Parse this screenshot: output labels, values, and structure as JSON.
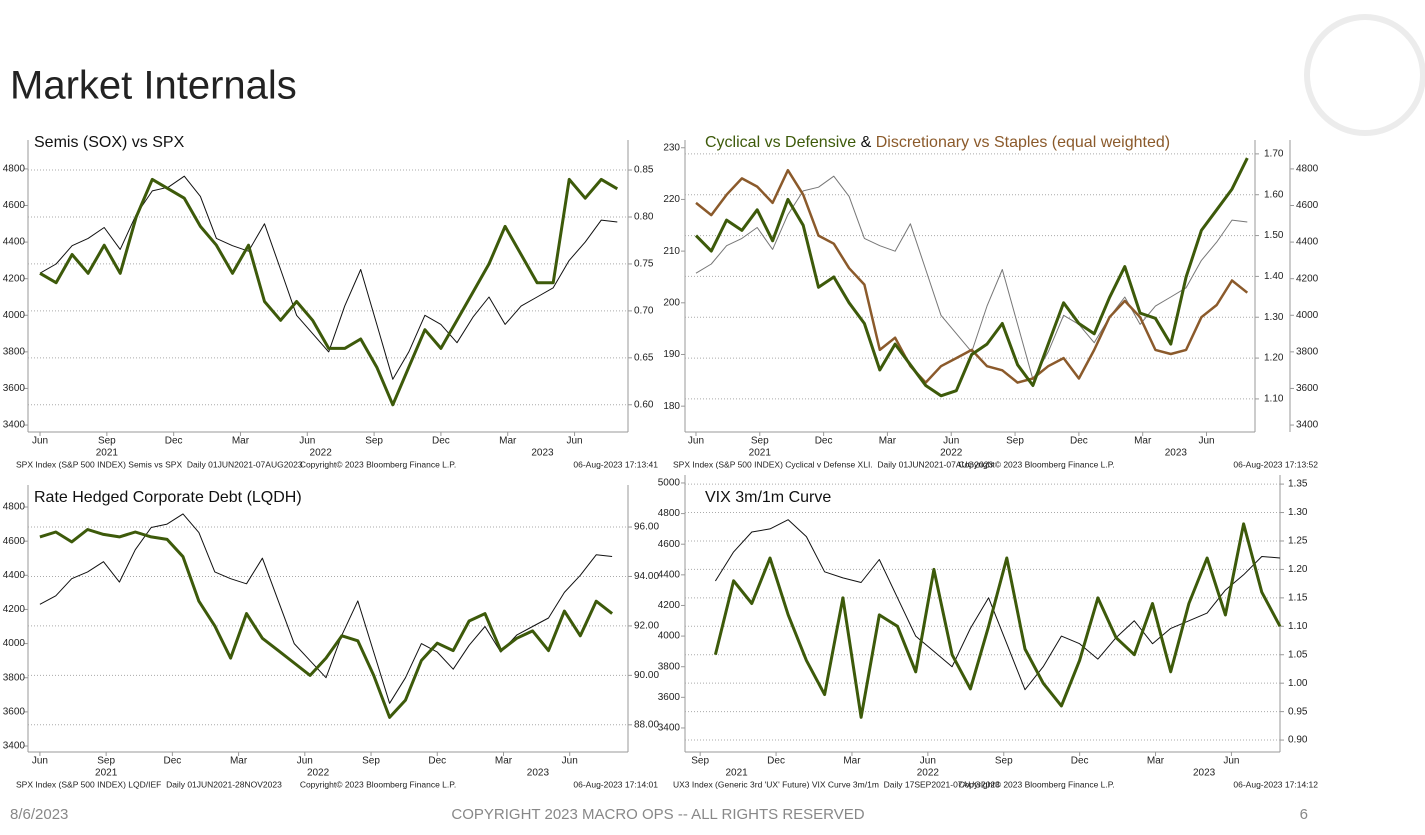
{
  "title": "Market Internals",
  "footer": {
    "date": "8/6/2023",
    "copyright": "COPYRIGHT 2023 MACRO OPS -- ALL RIGHTS RESERVED",
    "page": "6"
  },
  "chart_data": [
    {
      "type": "line",
      "title": "Semis (SOX) vs SPX",
      "source": "SPX Index (S&P 500 INDEX) Semis vs SPX  Daily 01JUN2021-07AUG2023",
      "copyright": "Copyright© 2023 Bloomberg Finance L.P.",
      "timestamp": "06-Aug-2023 17:13:41",
      "xlim": [
        2021.375,
        2023.62
      ],
      "xticks": [
        {
          "value": 2021.42,
          "label": "Jun"
        },
        {
          "value": 2021.67,
          "label": "Sep"
        },
        {
          "value": 2021.92,
          "label": "Dec"
        },
        {
          "value": 2022.17,
          "label": "Mar"
        },
        {
          "value": 2022.42,
          "label": "Jun"
        },
        {
          "value": 2022.67,
          "label": "Sep"
        },
        {
          "value": 2022.92,
          "label": "Dec"
        },
        {
          "value": 2023.17,
          "label": "Mar"
        },
        {
          "value": 2023.42,
          "label": "Jun"
        }
      ],
      "years": [
        {
          "value": 2021.67,
          "label": "2021"
        },
        {
          "value": 2022.47,
          "label": "2022"
        },
        {
          "value": 2023.3,
          "label": "2023"
        }
      ],
      "ylim": [
        3362,
        4958
      ],
      "yticks": [
        3400,
        3600,
        3800,
        4000,
        4200,
        4400,
        4600,
        4800
      ],
      "y2lim": [
        0.571,
        0.882
      ],
      "y2ticks": [
        {
          "value": 0.6,
          "label": "0.60"
        },
        {
          "value": 0.65,
          "label": "0.65"
        },
        {
          "value": 0.7,
          "label": "0.70"
        },
        {
          "value": 0.75,
          "label": "0.75"
        },
        {
          "value": 0.8,
          "label": "0.80"
        },
        {
          "value": 0.85,
          "label": "0.85"
        }
      ],
      "grid": "y2",
      "x": [
        2021.42,
        2021.48,
        2021.54,
        2021.6,
        2021.66,
        2021.72,
        2021.78,
        2021.84,
        2021.9,
        2021.96,
        2022.02,
        2022.08,
        2022.14,
        2022.2,
        2022.26,
        2022.32,
        2022.38,
        2022.44,
        2022.5,
        2022.56,
        2022.62,
        2022.68,
        2022.74,
        2022.8,
        2022.86,
        2022.92,
        2022.98,
        2023.04,
        2023.1,
        2023.16,
        2023.22,
        2023.28,
        2023.34,
        2023.4,
        2023.46,
        2023.52,
        2023.58
      ],
      "series": [
        {
          "color": "#111111",
          "width": 1,
          "axis": "y",
          "values": [
            4230,
            4280,
            4380,
            4420,
            4480,
            4360,
            4550,
            4680,
            4700,
            4760,
            4650,
            4420,
            4380,
            4350,
            4500,
            4250,
            4000,
            3900,
            3800,
            4050,
            4250,
            3950,
            3650,
            3800,
            4000,
            3950,
            3850,
            3990,
            4100,
            3950,
            4050,
            4100,
            4150,
            4300,
            4400,
            4520,
            4510
          ]
        },
        {
          "color": "#3d5a0a",
          "width": 3,
          "axis": "y2",
          "values": [
            0.74,
            0.73,
            0.76,
            0.74,
            0.77,
            0.74,
            0.8,
            0.84,
            0.83,
            0.82,
            0.79,
            0.77,
            0.74,
            0.77,
            0.71,
            0.69,
            0.71,
            0.69,
            0.66,
            0.66,
            0.67,
            0.64,
            0.6,
            0.64,
            0.68,
            0.66,
            0.69,
            0.72,
            0.75,
            0.79,
            0.76,
            0.73,
            0.73,
            0.84,
            0.82,
            0.84,
            0.83
          ]
        }
      ]
    },
    {
      "type": "line",
      "title_parts": [
        {
          "text": "Cyclical vs Defensive",
          "color": "#3d5a0a"
        },
        {
          "text": " & ",
          "color": "#111111"
        },
        {
          "text": "Discretionary vs Staples (equal weighted)",
          "color": "#8b5a2b"
        }
      ],
      "source": "SPX Index (S&P 500 INDEX) Cyclical v Defense XLI.  Daily 01JUN2021-07AUG2023",
      "copyright": "Copyright© 2023 Bloomberg Finance L.P.",
      "timestamp": "06-Aug-2023 17:13:52",
      "xlim": [
        2021.377,
        2023.61
      ],
      "xticks": [
        {
          "value": 2021.42,
          "label": "Jun"
        },
        {
          "value": 2021.67,
          "label": "Sep"
        },
        {
          "value": 2021.92,
          "label": "Dec"
        },
        {
          "value": 2022.17,
          "label": "Mar"
        },
        {
          "value": 2022.42,
          "label": "Jun"
        },
        {
          "value": 2022.67,
          "label": "Sep"
        },
        {
          "value": 2022.92,
          "label": "Dec"
        },
        {
          "value": 2023.17,
          "label": "Mar"
        },
        {
          "value": 2023.42,
          "label": "Jun"
        }
      ],
      "years": [
        {
          "value": 2021.67,
          "label": "2021"
        },
        {
          "value": 2022.42,
          "label": "2022"
        },
        {
          "value": 2023.3,
          "label": "2023"
        }
      ],
      "ylim": [
        175,
        231.5
      ],
      "yticks": [
        180,
        190,
        200,
        210,
        220,
        230
      ],
      "y2lim": [
        1.019,
        1.734
      ],
      "y2ticks": [
        {
          "value": 1.1,
          "label": "1.10"
        },
        {
          "value": 1.2,
          "label": "1.20"
        },
        {
          "value": 1.3,
          "label": "1.30"
        },
        {
          "value": 1.4,
          "label": "1.40"
        },
        {
          "value": 1.5,
          "label": "1.50"
        },
        {
          "value": 1.6,
          "label": "1.60"
        },
        {
          "value": 1.7,
          "label": "1.70"
        }
      ],
      "y3lim": [
        3362,
        4958
      ],
      "y3ticks": [
        3400,
        3600,
        3800,
        4000,
        4200,
        4400,
        4600,
        4800
      ],
      "grid": "y2",
      "x": [
        2021.42,
        2021.48,
        2021.54,
        2021.6,
        2021.66,
        2021.72,
        2021.78,
        2021.84,
        2021.9,
        2021.96,
        2022.02,
        2022.08,
        2022.14,
        2022.2,
        2022.26,
        2022.32,
        2022.38,
        2022.44,
        2022.5,
        2022.56,
        2022.62,
        2022.68,
        2022.74,
        2022.8,
        2022.86,
        2022.92,
        2022.98,
        2023.04,
        2023.1,
        2023.16,
        2023.22,
        2023.28,
        2023.34,
        2023.4,
        2023.46,
        2023.52,
        2023.58
      ],
      "series": [
        {
          "color": "#777777",
          "width": 1,
          "axis": "y3",
          "values": [
            4230,
            4280,
            4380,
            4420,
            4480,
            4360,
            4550,
            4680,
            4700,
            4760,
            4650,
            4420,
            4380,
            4350,
            4500,
            4250,
            4000,
            3900,
            3800,
            4050,
            4250,
            3950,
            3650,
            3800,
            4000,
            3950,
            3850,
            3990,
            4100,
            3950,
            4050,
            4100,
            4150,
            4300,
            4400,
            4520,
            4510
          ]
        },
        {
          "color": "#8b5a2b",
          "width": 2.5,
          "axis": "y2",
          "values": [
            1.58,
            1.55,
            1.6,
            1.64,
            1.62,
            1.58,
            1.66,
            1.6,
            1.5,
            1.48,
            1.42,
            1.38,
            1.22,
            1.25,
            1.18,
            1.14,
            1.18,
            1.2,
            1.22,
            1.18,
            1.17,
            1.14,
            1.15,
            1.18,
            1.2,
            1.15,
            1.22,
            1.3,
            1.34,
            1.3,
            1.22,
            1.21,
            1.22,
            1.3,
            1.33,
            1.39,
            1.36
          ]
        },
        {
          "color": "#3d5a0a",
          "width": 3,
          "axis": "y",
          "values": [
            213,
            210,
            216,
            214,
            218,
            212,
            220,
            215,
            203,
            205,
            200,
            196,
            187,
            192,
            188,
            184,
            182,
            183,
            190,
            192,
            196,
            188,
            184,
            192,
            200,
            196,
            194,
            201,
            207,
            198,
            197,
            192,
            205,
            214,
            218,
            222,
            228
          ]
        }
      ]
    },
    {
      "type": "line",
      "title": "Rate Hedged Corporate Debt (LQDH)",
      "source": "SPX Index (S&P 500 INDEX) LQD/IEF  Daily 01JUN2021-28NOV2023",
      "copyright": "Copyright© 2023 Bloomberg Finance L.P.",
      "timestamp": "06-Aug-2023 17:14:01",
      "xlim": [
        2021.375,
        2023.64
      ],
      "xticks": [
        {
          "value": 2021.42,
          "label": "Jun"
        },
        {
          "value": 2021.67,
          "label": "Sep"
        },
        {
          "value": 2021.92,
          "label": "Dec"
        },
        {
          "value": 2022.17,
          "label": "Mar"
        },
        {
          "value": 2022.42,
          "label": "Jun"
        },
        {
          "value": 2022.67,
          "label": "Sep"
        },
        {
          "value": 2022.92,
          "label": "Dec"
        },
        {
          "value": 2023.17,
          "label": "Mar"
        },
        {
          "value": 2023.42,
          "label": "Jun"
        }
      ],
      "years": [
        {
          "value": 2021.67,
          "label": "2021"
        },
        {
          "value": 2022.47,
          "label": "2022"
        },
        {
          "value": 2023.3,
          "label": "2023"
        }
      ],
      "ylim": [
        3365,
        4929
      ],
      "yticks": [
        3400,
        3600,
        3800,
        4000,
        4200,
        4400,
        4600,
        4800
      ],
      "y2lim": [
        86.9,
        97.7
      ],
      "y2ticks": [
        {
          "value": 88,
          "label": "88.00"
        },
        {
          "value": 90,
          "label": "90.00"
        },
        {
          "value": 92,
          "label": "92.00"
        },
        {
          "value": 94,
          "label": "94.00"
        },
        {
          "value": 96,
          "label": "96.00"
        }
      ],
      "grid": "y2",
      "x": [
        2021.42,
        2021.48,
        2021.54,
        2021.6,
        2021.66,
        2021.72,
        2021.78,
        2021.84,
        2021.9,
        2021.96,
        2022.02,
        2022.08,
        2022.14,
        2022.2,
        2022.26,
        2022.32,
        2022.38,
        2022.44,
        2022.5,
        2022.56,
        2022.62,
        2022.68,
        2022.74,
        2022.8,
        2022.86,
        2022.92,
        2022.98,
        2023.04,
        2023.1,
        2023.16,
        2023.22,
        2023.28,
        2023.34,
        2023.4,
        2023.46,
        2023.52,
        2023.58
      ],
      "series": [
        {
          "color": "#111111",
          "width": 1,
          "axis": "y",
          "values": [
            4230,
            4280,
            4380,
            4420,
            4480,
            4360,
            4550,
            4680,
            4700,
            4760,
            4650,
            4420,
            4380,
            4350,
            4500,
            4250,
            4000,
            3900,
            3800,
            4050,
            4250,
            3950,
            3650,
            3800,
            4000,
            3950,
            3850,
            3990,
            4100,
            3950,
            4050,
            4100,
            4150,
            4300,
            4400,
            4520,
            4510
          ]
        },
        {
          "color": "#3d5a0a",
          "width": 3,
          "axis": "y2",
          "values": [
            95.6,
            95.8,
            95.4,
            95.9,
            95.7,
            95.6,
            95.8,
            95.6,
            95.5,
            94.8,
            93,
            92,
            90.7,
            92.5,
            91.5,
            91,
            90.5,
            90,
            90.7,
            91.6,
            91.4,
            90,
            88.3,
            89,
            90.6,
            91.3,
            91,
            92.2,
            92.5,
            91,
            91.5,
            91.8,
            91,
            92.6,
            91.6,
            93,
            92.5
          ]
        }
      ]
    },
    {
      "type": "line",
      "title": "VIX 3m/1m Curve",
      "source": "UX3 Index (Generic 3rd 'UX' Future) VIX Curve 3m/1m  Daily 17SEP2021-07AUG2023",
      "copyright": "Copyright© 2023 Bloomberg Finance L.P.",
      "timestamp": "06-Aug-2023 17:14:12",
      "xlim": [
        2021.62,
        2023.58
      ],
      "xticks": [
        {
          "value": 2021.67,
          "label": "Sep"
        },
        {
          "value": 2021.92,
          "label": "Dec"
        },
        {
          "value": 2022.17,
          "label": "Mar"
        },
        {
          "value": 2022.42,
          "label": "Jun"
        },
        {
          "value": 2022.67,
          "label": "Sep"
        },
        {
          "value": 2022.92,
          "label": "Dec"
        },
        {
          "value": 2023.17,
          "label": "Mar"
        },
        {
          "value": 2023.42,
          "label": "Jun"
        }
      ],
      "years": [
        {
          "value": 2021.79,
          "label": "2021"
        },
        {
          "value": 2022.42,
          "label": "2022"
        },
        {
          "value": 2023.33,
          "label": "2023"
        }
      ],
      "ylim": [
        3243,
        5052
      ],
      "yticks": [
        3400,
        3600,
        3800,
        4000,
        4200,
        4400,
        4600,
        4800,
        5000
      ],
      "y2lim": [
        0.879,
        1.366
      ],
      "y2ticks": [
        {
          "value": 0.9,
          "label": "0.90"
        },
        {
          "value": 0.95,
          "label": "0.95"
        },
        {
          "value": 1,
          "label": "1.00"
        },
        {
          "value": 1.05,
          "label": "1.05"
        },
        {
          "value": 1.1,
          "label": "1.10"
        },
        {
          "value": 1.15,
          "label": "1.15"
        },
        {
          "value": 1.2,
          "label": "1.20"
        },
        {
          "value": 1.25,
          "label": "1.25"
        },
        {
          "value": 1.3,
          "label": "1.30"
        },
        {
          "value": 1.35,
          "label": "1.35"
        }
      ],
      "grid": "y2",
      "x": [
        2021.72,
        2021.78,
        2021.84,
        2021.9,
        2021.96,
        2022.02,
        2022.08,
        2022.14,
        2022.2,
        2022.26,
        2022.32,
        2022.38,
        2022.44,
        2022.5,
        2022.56,
        2022.62,
        2022.68,
        2022.74,
        2022.8,
        2022.86,
        2022.92,
        2022.98,
        2023.04,
        2023.1,
        2023.16,
        2023.22,
        2023.28,
        2023.34,
        2023.4,
        2023.46,
        2023.52,
        2023.58
      ],
      "series": [
        {
          "color": "#111111",
          "width": 1,
          "axis": "y",
          "values": [
            4360,
            4550,
            4680,
            4700,
            4760,
            4650,
            4420,
            4380,
            4350,
            4500,
            4250,
            4000,
            3900,
            3800,
            4050,
            4250,
            3950,
            3650,
            3800,
            4000,
            3950,
            3850,
            3990,
            4100,
            3950,
            4050,
            4100,
            4150,
            4300,
            4400,
            4520,
            4510
          ]
        },
        {
          "color": "#3d5a0a",
          "width": 3,
          "axis": "y2",
          "values": [
            1.05,
            1.18,
            1.14,
            1.22,
            1.12,
            1.04,
            0.98,
            1.15,
            0.94,
            1.12,
            1.1,
            1.02,
            1.2,
            1.05,
            0.99,
            1.1,
            1.22,
            1.06,
            1.0,
            0.96,
            1.04,
            1.15,
            1.08,
            1.05,
            1.14,
            1.02,
            1.14,
            1.22,
            1.12,
            1.28,
            1.16,
            1.1
          ]
        }
      ]
    }
  ]
}
